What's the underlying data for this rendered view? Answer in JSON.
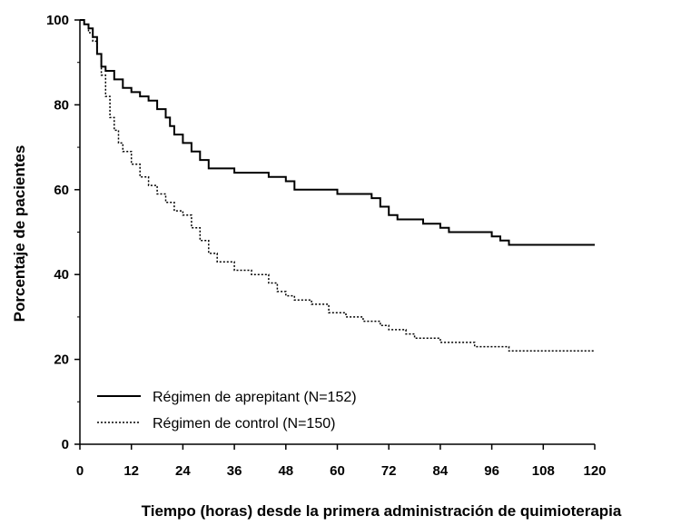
{
  "chart_data": {
    "type": "line",
    "xlabel": "Tiempo (horas) desde la primera administración de quimioterapia",
    "ylabel": "Porcentaje de pacientes",
    "xlim": [
      0,
      120
    ],
    "ylim": [
      0,
      100
    ],
    "x_ticks": [
      0,
      12,
      24,
      36,
      48,
      60,
      72,
      84,
      96,
      108,
      120
    ],
    "y_ticks": [
      0,
      20,
      40,
      60,
      80,
      100
    ],
    "grid": false,
    "legend_position": "bottom-left",
    "step": true,
    "series": [
      {
        "name": "Régimen de aprepitant (N=152)",
        "style": "solid",
        "color": "#000000",
        "points": [
          [
            0,
            100
          ],
          [
            1,
            99
          ],
          [
            2,
            98
          ],
          [
            3,
            96
          ],
          [
            4,
            92
          ],
          [
            5,
            89
          ],
          [
            6,
            88
          ],
          [
            8,
            86
          ],
          [
            10,
            84
          ],
          [
            12,
            83
          ],
          [
            14,
            82
          ],
          [
            16,
            81
          ],
          [
            18,
            79
          ],
          [
            20,
            77
          ],
          [
            21,
            75
          ],
          [
            22,
            73
          ],
          [
            24,
            71
          ],
          [
            26,
            69
          ],
          [
            28,
            67
          ],
          [
            30,
            65
          ],
          [
            34,
            65
          ],
          [
            36,
            64
          ],
          [
            40,
            64
          ],
          [
            44,
            63
          ],
          [
            48,
            62
          ],
          [
            50,
            60
          ],
          [
            56,
            60
          ],
          [
            60,
            59
          ],
          [
            66,
            59
          ],
          [
            68,
            58
          ],
          [
            70,
            56
          ],
          [
            72,
            54
          ],
          [
            74,
            53
          ],
          [
            78,
            53
          ],
          [
            80,
            52
          ],
          [
            84,
            51
          ],
          [
            86,
            50
          ],
          [
            94,
            50
          ],
          [
            96,
            49
          ],
          [
            98,
            48
          ],
          [
            100,
            47
          ],
          [
            120,
            47
          ]
        ]
      },
      {
        "name": "Régimen de control (N=150)",
        "style": "dotted",
        "color": "#000000",
        "points": [
          [
            0,
            100
          ],
          [
            1,
            99
          ],
          [
            2,
            97
          ],
          [
            3,
            95
          ],
          [
            4,
            92
          ],
          [
            5,
            87
          ],
          [
            6,
            82
          ],
          [
            7,
            77
          ],
          [
            8,
            74
          ],
          [
            9,
            71
          ],
          [
            10,
            69
          ],
          [
            12,
            66
          ],
          [
            14,
            63
          ],
          [
            16,
            61
          ],
          [
            18,
            59
          ],
          [
            20,
            57
          ],
          [
            22,
            55
          ],
          [
            24,
            54
          ],
          [
            26,
            51
          ],
          [
            28,
            48
          ],
          [
            30,
            45
          ],
          [
            32,
            43
          ],
          [
            36,
            41
          ],
          [
            40,
            40
          ],
          [
            44,
            38
          ],
          [
            46,
            36
          ],
          [
            48,
            35
          ],
          [
            50,
            34
          ],
          [
            54,
            33
          ],
          [
            58,
            31
          ],
          [
            62,
            30
          ],
          [
            66,
            29
          ],
          [
            70,
            28
          ],
          [
            72,
            27
          ],
          [
            76,
            26
          ],
          [
            78,
            25
          ],
          [
            82,
            25
          ],
          [
            84,
            24
          ],
          [
            90,
            24
          ],
          [
            92,
            23
          ],
          [
            96,
            23
          ],
          [
            100,
            22
          ],
          [
            102,
            22
          ],
          [
            120,
            22
          ]
        ]
      }
    ]
  }
}
